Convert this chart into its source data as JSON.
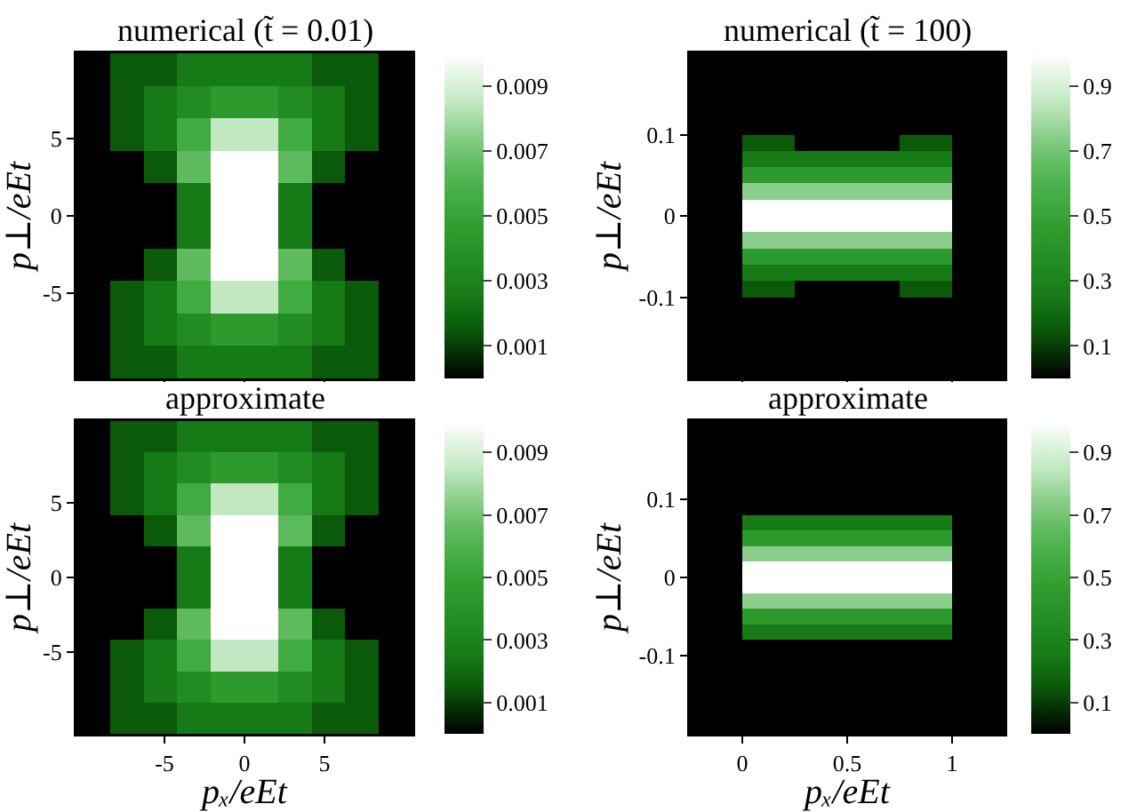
{
  "chart_data": [
    {
      "type": "heatmap",
      "title": "numerical (t̃ = 0.01)",
      "ylabel": "p⊥/eEt",
      "xlim": [
        -10.5,
        10.5
      ],
      "ylim": [
        -10.5,
        10.5
      ],
      "xticks": [
        -5,
        0,
        5
      ],
      "yticks": [
        -5,
        0,
        5
      ],
      "tick_labels": "y",
      "clim": [
        0,
        0.01
      ],
      "cticks": [
        0.001,
        0.003,
        0.005,
        0.007,
        0.009
      ],
      "colors": [
        "#000000",
        "#0a5a0a",
        "#167a16",
        "#228b22",
        "#2e9a2e",
        "#40ab40",
        "#5dba5d",
        "#8ccf8c",
        "#c2e8c2",
        "#ffffff"
      ],
      "cells": [
        [
          0,
          0.0015,
          0.0015,
          0.0025,
          0.0025,
          0.0025,
          0.0025,
          0.0015,
          0.0015,
          0
        ],
        [
          0,
          0.0015,
          0.0025,
          0.0035,
          0.0045,
          0.0045,
          0.0035,
          0.0025,
          0.0015,
          0
        ],
        [
          0,
          0.0015,
          0.0025,
          0.0055,
          0.0085,
          0.0085,
          0.0055,
          0.0025,
          0.0015,
          0
        ],
        [
          0,
          0,
          0.0015,
          0.0065,
          0.01,
          0.01,
          0.0065,
          0.0015,
          0,
          0
        ],
        [
          0,
          0,
          0,
          0.0025,
          0.01,
          0.01,
          0.0025,
          0,
          0,
          0
        ],
        [
          0,
          0,
          0,
          0.0025,
          0.01,
          0.01,
          0.0025,
          0,
          0,
          0
        ],
        [
          0,
          0,
          0.0015,
          0.0065,
          0.01,
          0.01,
          0.0065,
          0.0015,
          0,
          0
        ],
        [
          0,
          0.0015,
          0.0025,
          0.0055,
          0.0085,
          0.0085,
          0.0055,
          0.0025,
          0.0015,
          0
        ],
        [
          0,
          0.0015,
          0.0025,
          0.0035,
          0.0045,
          0.0045,
          0.0035,
          0.0025,
          0.0015,
          0
        ],
        [
          0,
          0.0015,
          0.0015,
          0.0025,
          0.0025,
          0.0025,
          0.0025,
          0.0015,
          0.0015,
          0
        ]
      ]
    },
    {
      "type": "heatmap",
      "title": "numerical (t̃ = 100)",
      "ylabel": "p⊥/eEt",
      "xlim": [
        -0.25,
        1.25
      ],
      "ylim": [
        -0.2,
        0.2
      ],
      "xticks": [
        0,
        0.5,
        1
      ],
      "yticks": [
        -0.1,
        0,
        0.1
      ],
      "tick_labels": "y",
      "clim": [
        0,
        1
      ],
      "cticks": [
        0.1,
        0.3,
        0.5,
        0.7,
        0.9
      ],
      "colors": [
        "#000000",
        "#0a5a0a",
        "#167a16",
        "#228b22",
        "#2e9a2e",
        "#40ab40",
        "#5dba5d",
        "#8ccf8c",
        "#c2e8c2",
        "#ffffff"
      ],
      "cells": [
        [
          0,
          0,
          0,
          0,
          0,
          0
        ],
        [
          0,
          0,
          0,
          0,
          0,
          0
        ],
        [
          0,
          0,
          0,
          0,
          0,
          0
        ],
        [
          0,
          0,
          0,
          0,
          0,
          0
        ],
        [
          0,
          0,
          0,
          0,
          0,
          0
        ],
        [
          0,
          0.15,
          0,
          0,
          0.15,
          0
        ],
        [
          0,
          0.25,
          0.25,
          0.25,
          0.25,
          0
        ],
        [
          0,
          0.45,
          0.45,
          0.45,
          0.45,
          0
        ],
        [
          0,
          0.75,
          0.75,
          0.75,
          0.75,
          0
        ],
        [
          0,
          1,
          1,
          1,
          1,
          0
        ],
        [
          0,
          1,
          1,
          1,
          1,
          0
        ],
        [
          0,
          0.75,
          0.75,
          0.75,
          0.75,
          0
        ],
        [
          0,
          0.45,
          0.45,
          0.45,
          0.45,
          0
        ],
        [
          0,
          0.25,
          0.25,
          0.25,
          0.25,
          0
        ],
        [
          0,
          0.15,
          0,
          0,
          0.15,
          0
        ],
        [
          0,
          0,
          0,
          0,
          0,
          0
        ],
        [
          0,
          0,
          0,
          0,
          0,
          0
        ],
        [
          0,
          0,
          0,
          0,
          0,
          0
        ],
        [
          0,
          0,
          0,
          0,
          0,
          0
        ],
        [
          0,
          0,
          0,
          0,
          0,
          0
        ]
      ]
    },
    {
      "type": "heatmap",
      "title": "approximate",
      "xlabel": "pₓ/eEt",
      "ylabel": "p⊥/eEt",
      "xlim": [
        -10.5,
        10.5
      ],
      "ylim": [
        -10.5,
        10.5
      ],
      "xticks": [
        -5,
        0,
        5
      ],
      "yticks": [
        -5,
        0,
        5
      ],
      "clim": [
        0,
        0.01
      ],
      "cticks": [
        0.001,
        0.003,
        0.005,
        0.007,
        0.009
      ],
      "colors": [
        "#000000",
        "#0a5a0a",
        "#167a16",
        "#228b22",
        "#2e9a2e",
        "#40ab40",
        "#5dba5d",
        "#8ccf8c",
        "#c2e8c2",
        "#ffffff"
      ],
      "cells": [
        [
          0,
          0.0015,
          0.0015,
          0.0025,
          0.0025,
          0.0025,
          0.0025,
          0.0015,
          0.0015,
          0
        ],
        [
          0,
          0.0015,
          0.0025,
          0.0035,
          0.0045,
          0.0045,
          0.0035,
          0.0025,
          0.0015,
          0
        ],
        [
          0,
          0.0015,
          0.0025,
          0.0055,
          0.0085,
          0.0085,
          0.0055,
          0.0025,
          0.0015,
          0
        ],
        [
          0,
          0,
          0.0015,
          0.0065,
          0.01,
          0.01,
          0.0065,
          0.0015,
          0,
          0
        ],
        [
          0,
          0,
          0,
          0.0025,
          0.01,
          0.01,
          0.0025,
          0,
          0,
          0
        ],
        [
          0,
          0,
          0,
          0.0025,
          0.01,
          0.01,
          0.0025,
          0,
          0,
          0
        ],
        [
          0,
          0,
          0.0015,
          0.0065,
          0.01,
          0.01,
          0.0065,
          0.0015,
          0,
          0
        ],
        [
          0,
          0.0015,
          0.0025,
          0.0055,
          0.0085,
          0.0085,
          0.0055,
          0.0025,
          0.0015,
          0
        ],
        [
          0,
          0.0015,
          0.0025,
          0.0035,
          0.0045,
          0.0045,
          0.0035,
          0.0025,
          0.0015,
          0
        ],
        [
          0,
          0.0015,
          0.0015,
          0.0025,
          0.0025,
          0.0025,
          0.0025,
          0.0015,
          0.0015,
          0
        ]
      ]
    },
    {
      "type": "heatmap",
      "title": "approximate",
      "xlabel": "pₓ/eEt",
      "ylabel": "p⊥/eEt",
      "xlim": [
        -0.25,
        1.25
      ],
      "ylim": [
        -0.2,
        0.2
      ],
      "xticks": [
        0,
        0.5,
        1
      ],
      "yticks": [
        -0.1,
        0,
        0.1
      ],
      "clim": [
        0,
        1
      ],
      "cticks": [
        0.1,
        0.3,
        0.5,
        0.7,
        0.9
      ],
      "colors": [
        "#000000",
        "#0a5a0a",
        "#167a16",
        "#228b22",
        "#2e9a2e",
        "#40ab40",
        "#5dba5d",
        "#8ccf8c",
        "#c2e8c2",
        "#ffffff"
      ],
      "cells": [
        [
          0,
          0,
          0,
          0,
          0,
          0
        ],
        [
          0,
          0,
          0,
          0,
          0,
          0
        ],
        [
          0,
          0,
          0,
          0,
          0,
          0
        ],
        [
          0,
          0,
          0,
          0,
          0,
          0
        ],
        [
          0,
          0,
          0,
          0,
          0,
          0
        ],
        [
          0,
          0,
          0,
          0,
          0,
          0
        ],
        [
          0,
          0.25,
          0.25,
          0.25,
          0.25,
          0
        ],
        [
          0,
          0.45,
          0.45,
          0.45,
          0.45,
          0
        ],
        [
          0,
          0.75,
          0.75,
          0.75,
          0.75,
          0
        ],
        [
          0,
          1,
          1,
          1,
          1,
          0
        ],
        [
          0,
          1,
          1,
          1,
          1,
          0
        ],
        [
          0,
          0.75,
          0.75,
          0.75,
          0.75,
          0
        ],
        [
          0,
          0.45,
          0.45,
          0.45,
          0.45,
          0
        ],
        [
          0,
          0.25,
          0.25,
          0.25,
          0.25,
          0
        ],
        [
          0,
          0,
          0,
          0,
          0,
          0
        ],
        [
          0,
          0,
          0,
          0,
          0,
          0
        ],
        [
          0,
          0,
          0,
          0,
          0,
          0
        ],
        [
          0,
          0,
          0,
          0,
          0,
          0
        ],
        [
          0,
          0,
          0,
          0,
          0,
          0
        ],
        [
          0,
          0,
          0,
          0,
          0,
          0
        ]
      ]
    }
  ]
}
